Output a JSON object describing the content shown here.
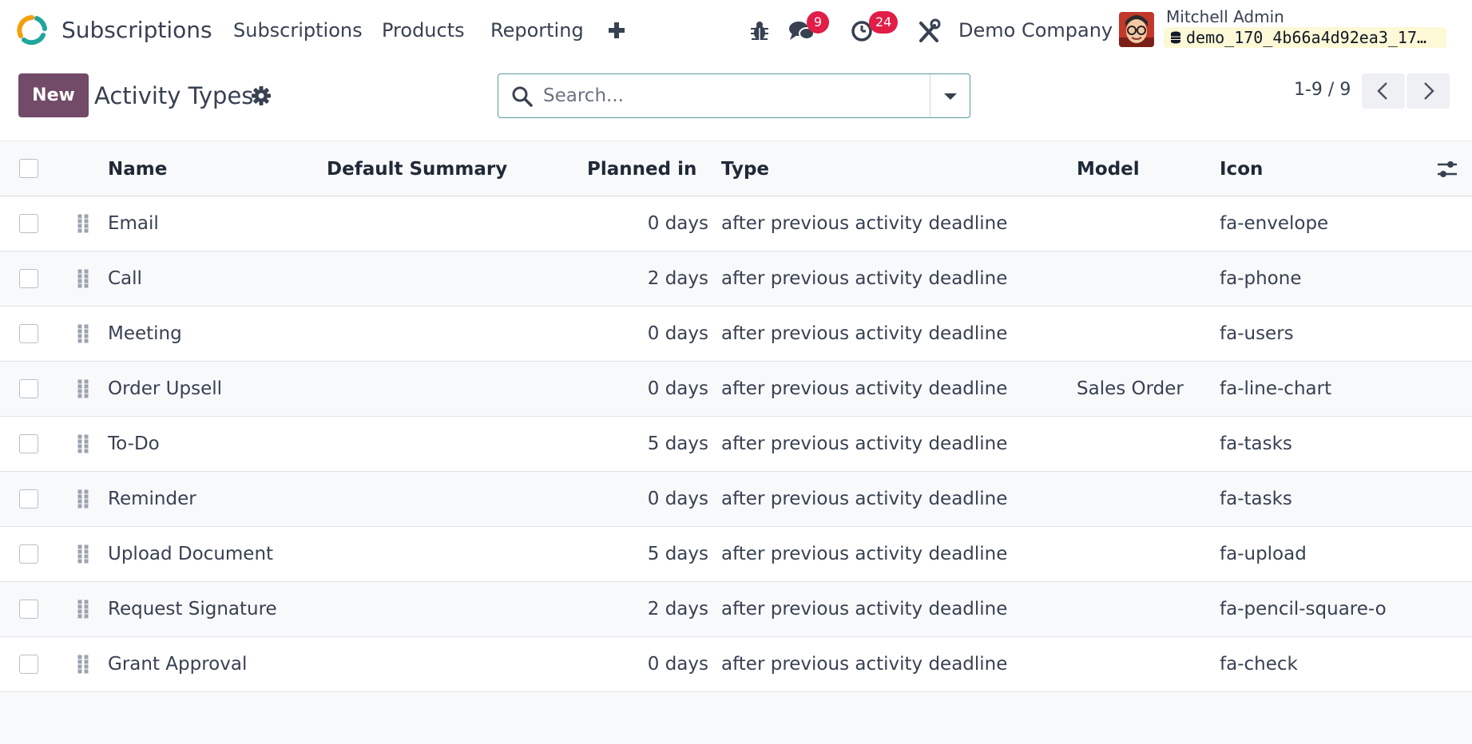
{
  "navbar": {
    "app_name": "Subscriptions",
    "menu": [
      {
        "label": "Subscriptions"
      },
      {
        "label": "Products"
      },
      {
        "label": "Reporting"
      }
    ],
    "messages_count": "9",
    "activities_count": "24",
    "company": "Demo Company",
    "user_name": "Mitchell Admin",
    "database": "demo_170_4b66a4d92ea3_17…"
  },
  "control": {
    "new_label": "New",
    "title": "Activity Types",
    "search_placeholder": "Search...",
    "pager_value": "1-9 / 9"
  },
  "table": {
    "columns": {
      "name": "Name",
      "summary": "Default Summary",
      "planned": "Planned in",
      "type": "Type",
      "model": "Model",
      "icon": "Icon"
    },
    "rows": [
      {
        "name": "Email",
        "summary": "",
        "planned": "0 days",
        "type": "after previous activity deadline",
        "model": "",
        "icon": "fa-envelope"
      },
      {
        "name": "Call",
        "summary": "",
        "planned": "2 days",
        "type": "after previous activity deadline",
        "model": "",
        "icon": "fa-phone"
      },
      {
        "name": "Meeting",
        "summary": "",
        "planned": "0 days",
        "type": "after previous activity deadline",
        "model": "",
        "icon": "fa-users"
      },
      {
        "name": "Order Upsell",
        "summary": "",
        "planned": "0 days",
        "type": "after previous activity deadline",
        "model": "Sales Order",
        "icon": "fa-line-chart"
      },
      {
        "name": "To-Do",
        "summary": "",
        "planned": "5 days",
        "type": "after previous activity deadline",
        "model": "",
        "icon": "fa-tasks"
      },
      {
        "name": "Reminder",
        "summary": "",
        "planned": "0 days",
        "type": "after previous activity deadline",
        "model": "",
        "icon": "fa-tasks"
      },
      {
        "name": "Upload Document",
        "summary": "",
        "planned": "5 days",
        "type": "after previous activity deadline",
        "model": "",
        "icon": "fa-upload"
      },
      {
        "name": "Request Signature",
        "summary": "",
        "planned": "2 days",
        "type": "after previous activity deadline",
        "model": "",
        "icon": "fa-pencil-square-o"
      },
      {
        "name": "Grant Approval",
        "summary": "",
        "planned": "0 days",
        "type": "after previous activity deadline",
        "model": "",
        "icon": "fa-check"
      }
    ]
  },
  "colors": {
    "brand": "#714b67",
    "badge": "#e11d48",
    "search_border": "#5b9aa3"
  },
  "icons": [
    "app-logo-icon",
    "plus-icon",
    "bug-icon",
    "chat-icon",
    "clock-icon",
    "tools-icon",
    "database-icon",
    "gear-icon",
    "search-icon",
    "caret-down-icon",
    "chevron-left-icon",
    "chevron-right-icon",
    "drag-handle-icon",
    "column-settings-icon"
  ]
}
